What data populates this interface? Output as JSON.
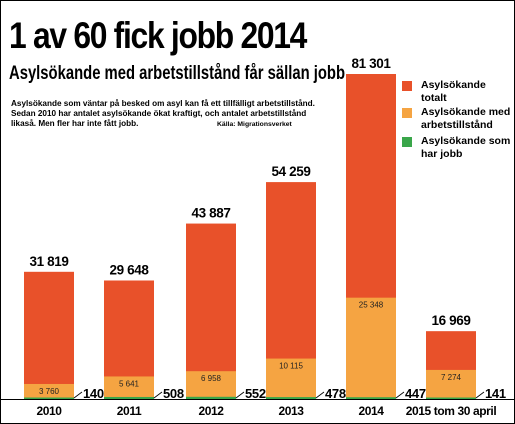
{
  "header": {
    "title": "1 av 60 fick jobb 2014",
    "subtitle": "Asylsökande med arbetstillstånd får sällan jobb",
    "intro": "Asylsökande som väntar på besked om asyl kan få ett tillfälligt arbetstill­stånd. Sedan 2010 har antalet asylsökande ökat kraftigt, och antalet arbets­tillstånd likaså. Men fler har inte fått jobb.",
    "source": "Källa: Migrationsverket"
  },
  "legend": [
    {
      "label": "Asylsökande totalt",
      "color": "#e8512a"
    },
    {
      "label": "Asylsökande med arbetstillstånd",
      "color": "#f5a442"
    },
    {
      "label": "Asylsökande som har jobb",
      "color": "#3aa64a"
    }
  ],
  "chart_data": {
    "type": "bar",
    "categories": [
      "2010",
      "2011",
      "2012",
      "2013",
      "2014",
      "2015 tom 30 april"
    ],
    "series": [
      {
        "name": "Asylsökande totalt",
        "color": "#e8512a",
        "values": [
          31819,
          29648,
          43887,
          54259,
          81301,
          16969
        ],
        "labels": [
          "31 819",
          "29 648",
          "43 887",
          "54 259",
          "81 301",
          "16 969"
        ]
      },
      {
        "name": "Asylsökande med arbetstillstånd",
        "color": "#f5a442",
        "values": [
          3760,
          5641,
          6958,
          10115,
          25348,
          7274
        ],
        "labels": [
          "3 760",
          "5 641",
          "6 958",
          "10 115",
          "25 348",
          "7 274"
        ]
      },
      {
        "name": "Asylsökande som har jobb",
        "color": "#3aa64a",
        "values": [
          140,
          508,
          552,
          478,
          447,
          141
        ],
        "labels": [
          "140",
          "508",
          "552",
          "478",
          "447",
          "141"
        ]
      }
    ],
    "ylim": [
      0,
      81301
    ]
  }
}
